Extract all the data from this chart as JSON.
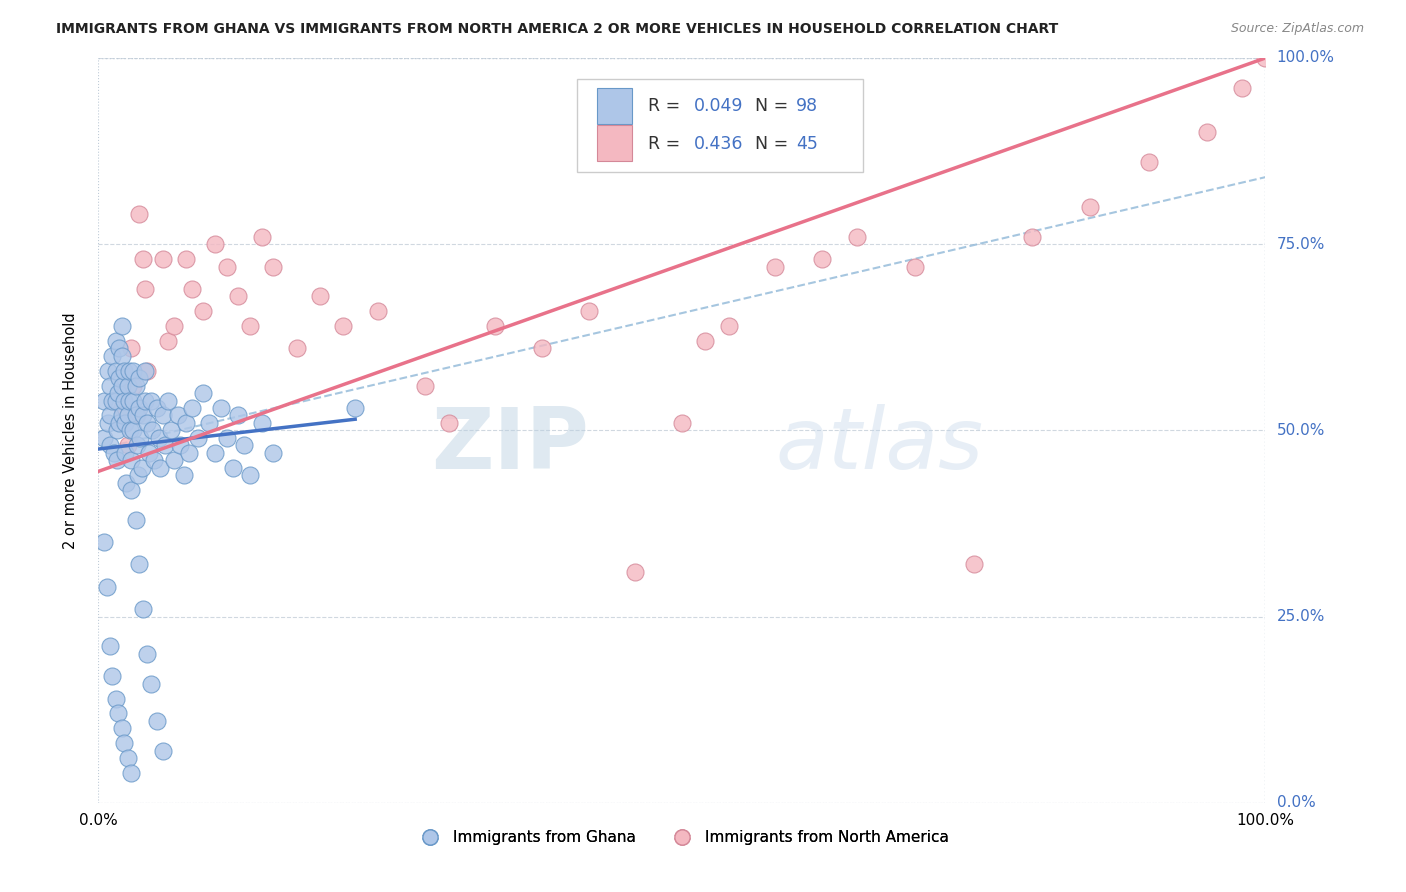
{
  "title": "IMMIGRANTS FROM GHANA VS IMMIGRANTS FROM NORTH AMERICA 2 OR MORE VEHICLES IN HOUSEHOLD CORRELATION CHART",
  "source": "Source: ZipAtlas.com",
  "ylabel": "2 or more Vehicles in Household",
  "xlim": [
    0,
    1.0
  ],
  "ylim": [
    0,
    1.0
  ],
  "xtick_labels": [
    "0.0%",
    "100.0%"
  ],
  "ytick_labels": [
    "0.0%",
    "25.0%",
    "50.0%",
    "75.0%",
    "100.0%"
  ],
  "ytick_values": [
    0.0,
    0.25,
    0.5,
    0.75,
    1.0
  ],
  "legend_label1": "Immigrants from Ghana",
  "legend_label2": "Immigrants from North America",
  "R1": 0.049,
  "N1": 98,
  "R2": 0.436,
  "N2": 45,
  "color_blue": "#aec6e8",
  "color_pink": "#f4b8c1",
  "line_blue": "#4472c4",
  "line_pink": "#e8728a",
  "dash_color": "#90b8d8",
  "watermark_color": "#c8d8e8",
  "ghana_x": [
    0.005,
    0.005,
    0.008,
    0.008,
    0.01,
    0.01,
    0.01,
    0.012,
    0.012,
    0.013,
    0.015,
    0.015,
    0.015,
    0.016,
    0.016,
    0.017,
    0.018,
    0.018,
    0.018,
    0.02,
    0.02,
    0.02,
    0.02,
    0.022,
    0.022,
    0.023,
    0.023,
    0.024,
    0.025,
    0.025,
    0.026,
    0.026,
    0.027,
    0.028,
    0.028,
    0.03,
    0.03,
    0.03,
    0.032,
    0.032,
    0.033,
    0.034,
    0.035,
    0.035,
    0.036,
    0.037,
    0.038,
    0.04,
    0.04,
    0.042,
    0.043,
    0.045,
    0.046,
    0.048,
    0.05,
    0.052,
    0.053,
    0.055,
    0.057,
    0.06,
    0.062,
    0.065,
    0.068,
    0.07,
    0.073,
    0.075,
    0.078,
    0.08,
    0.085,
    0.09,
    0.095,
    0.1,
    0.105,
    0.11,
    0.115,
    0.12,
    0.125,
    0.13,
    0.14,
    0.15,
    0.005,
    0.007,
    0.01,
    0.012,
    0.015,
    0.017,
    0.02,
    0.022,
    0.025,
    0.028,
    0.032,
    0.035,
    0.038,
    0.042,
    0.045,
    0.05,
    0.055,
    0.22
  ],
  "ghana_y": [
    0.54,
    0.49,
    0.58,
    0.51,
    0.56,
    0.52,
    0.48,
    0.6,
    0.54,
    0.47,
    0.62,
    0.58,
    0.54,
    0.5,
    0.46,
    0.55,
    0.61,
    0.57,
    0.51,
    0.64,
    0.6,
    0.56,
    0.52,
    0.58,
    0.54,
    0.51,
    0.47,
    0.43,
    0.56,
    0.52,
    0.58,
    0.54,
    0.5,
    0.46,
    0.42,
    0.58,
    0.54,
    0.5,
    0.56,
    0.52,
    0.48,
    0.44,
    0.57,
    0.53,
    0.49,
    0.45,
    0.52,
    0.58,
    0.54,
    0.51,
    0.47,
    0.54,
    0.5,
    0.46,
    0.53,
    0.49,
    0.45,
    0.52,
    0.48,
    0.54,
    0.5,
    0.46,
    0.52,
    0.48,
    0.44,
    0.51,
    0.47,
    0.53,
    0.49,
    0.55,
    0.51,
    0.47,
    0.53,
    0.49,
    0.45,
    0.52,
    0.48,
    0.44,
    0.51,
    0.47,
    0.35,
    0.29,
    0.21,
    0.17,
    0.14,
    0.12,
    0.1,
    0.08,
    0.06,
    0.04,
    0.38,
    0.32,
    0.26,
    0.2,
    0.16,
    0.11,
    0.07,
    0.53
  ],
  "northam_x": [
    0.02,
    0.025,
    0.028,
    0.03,
    0.033,
    0.035,
    0.038,
    0.04,
    0.042,
    0.055,
    0.06,
    0.065,
    0.075,
    0.08,
    0.09,
    0.1,
    0.11,
    0.12,
    0.13,
    0.14,
    0.15,
    0.17,
    0.19,
    0.21,
    0.24,
    0.28,
    0.3,
    0.34,
    0.38,
    0.42,
    0.46,
    0.5,
    0.52,
    0.54,
    0.58,
    0.62,
    0.65,
    0.7,
    0.75,
    0.8,
    0.85,
    0.9,
    0.95,
    0.98,
    1.0
  ],
  "northam_y": [
    0.53,
    0.48,
    0.61,
    0.56,
    0.52,
    0.79,
    0.73,
    0.69,
    0.58,
    0.73,
    0.62,
    0.64,
    0.73,
    0.69,
    0.66,
    0.75,
    0.72,
    0.68,
    0.64,
    0.76,
    0.72,
    0.61,
    0.68,
    0.64,
    0.66,
    0.56,
    0.51,
    0.64,
    0.61,
    0.66,
    0.31,
    0.51,
    0.62,
    0.64,
    0.72,
    0.73,
    0.76,
    0.72,
    0.32,
    0.76,
    0.8,
    0.86,
    0.9,
    0.96,
    1.0
  ],
  "ghana_trend_x": [
    0.0,
    0.22
  ],
  "ghana_trend_y": [
    0.475,
    0.515
  ],
  "northam_trend_x": [
    0.0,
    1.0
  ],
  "northam_trend_y": [
    0.445,
    1.0
  ],
  "dash_trend_x": [
    0.0,
    1.0
  ],
  "dash_trend_y": [
    0.475,
    0.84
  ]
}
